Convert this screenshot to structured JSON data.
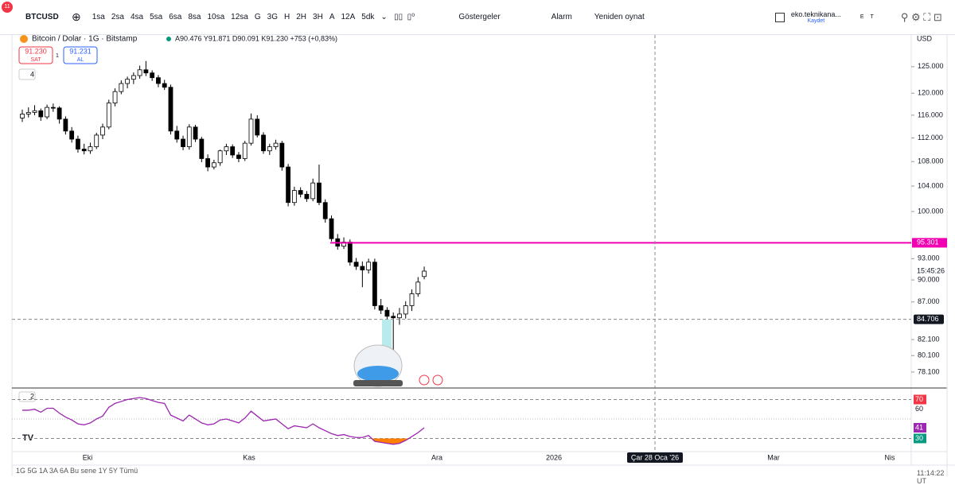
{
  "toolbar": {
    "badge": "11",
    "symbol": "BTCUSD",
    "intervals": [
      "1sa",
      "2sa",
      "4sa",
      "5sa",
      "6sa",
      "8sa",
      "10sa",
      "12sa",
      "G",
      "3G",
      "H",
      "2H",
      "3H",
      "A",
      "12A",
      "5dk"
    ],
    "indicators": "Göstergeler",
    "alarm": "Alarm",
    "replay": "Yeniden oynat",
    "account": "eko.teknikana...",
    "saved": "Kaydet",
    "e": "E",
    "t": "T"
  },
  "legend": {
    "title": "Bitcoin / Dolar · 1G · Bitstamp",
    "ohlc": "A90.476 Y91.871 D90.091 K91.230 +753 (+0,83%)",
    "sell_price": "91.230",
    "sell": "SAT",
    "spread": "1",
    "buy_price": "91.231",
    "buy": "AL",
    "collapse": "4"
  },
  "chart_data": {
    "type": "candlestick",
    "log": true,
    "currency": "USD",
    "candles": [
      [
        115500,
        117000,
        114800,
        116200
      ],
      [
        116200,
        117400,
        115600,
        116500
      ],
      [
        116500,
        117800,
        116000,
        116800
      ],
      [
        116800,
        117200,
        115000,
        115700
      ],
      [
        115700,
        117900,
        115300,
        117400
      ],
      [
        117400,
        118100,
        116600,
        117300
      ],
      [
        117300,
        117600,
        114500,
        115300
      ],
      [
        115300,
        115800,
        112600,
        113200
      ],
      [
        113200,
        113900,
        111200,
        111800
      ],
      [
        111800,
        112400,
        109500,
        110100
      ],
      [
        110100,
        111000,
        109200,
        109800
      ],
      [
        109800,
        111200,
        109300,
        110500
      ],
      [
        110500,
        112900,
        110100,
        112500
      ],
      [
        112500,
        114500,
        111800,
        113900
      ],
      [
        113900,
        118800,
        113500,
        118200
      ],
      [
        118200,
        120900,
        117600,
        120300
      ],
      [
        120300,
        122400,
        119800,
        121800
      ],
      [
        121800,
        123100,
        120900,
        122600
      ],
      [
        122600,
        123900,
        121700,
        123300
      ],
      [
        123300,
        125200,
        122700,
        124400
      ],
      [
        124400,
        126100,
        123200,
        123800
      ],
      [
        123800,
        124300,
        122300,
        122900
      ],
      [
        122900,
        123400,
        121100,
        121800
      ],
      [
        121800,
        122500,
        120600,
        121100
      ],
      [
        121100,
        121600,
        112600,
        113200
      ],
      [
        113200,
        114100,
        111200,
        111800
      ],
      [
        111800,
        112400,
        109900,
        110500
      ],
      [
        110500,
        114400,
        110000,
        113900
      ],
      [
        113900,
        114300,
        111300,
        111800
      ],
      [
        111800,
        112200,
        107900,
        108500
      ],
      [
        108500,
        109200,
        106400,
        107100
      ],
      [
        107100,
        108300,
        106700,
        107800
      ],
      [
        107800,
        110000,
        107300,
        109800
      ],
      [
        109800,
        111000,
        109100,
        110500
      ],
      [
        110500,
        110900,
        108600,
        109100
      ],
      [
        109100,
        109600,
        107900,
        108500
      ],
      [
        108500,
        111500,
        108100,
        111100
      ],
      [
        111100,
        116300,
        110700,
        115300
      ],
      [
        115300,
        116000,
        112100,
        112500
      ],
      [
        112500,
        113000,
        109300,
        109800
      ],
      [
        109800,
        111000,
        109100,
        110500
      ],
      [
        110500,
        111700,
        110000,
        111100
      ],
      [
        111100,
        111500,
        106500,
        107100
      ],
      [
        107100,
        107600,
        100800,
        101400
      ],
      [
        101400,
        103900,
        100900,
        103300
      ],
      [
        103300,
        103800,
        102200,
        102700
      ],
      [
        102700,
        103200,
        101500,
        102000
      ],
      [
        102000,
        105200,
        101600,
        104500
      ],
      [
        104500,
        107500,
        101000,
        101400
      ],
      [
        101400,
        101900,
        98300,
        98900
      ],
      [
        98900,
        99400,
        95500,
        95900
      ],
      [
        95900,
        96600,
        94300,
        94800
      ],
      [
        94800,
        96100,
        94400,
        95400
      ],
      [
        95400,
        95800,
        92000,
        92500
      ],
      [
        92500,
        93100,
        91400,
        91900
      ],
      [
        91900,
        92600,
        89000,
        91400
      ],
      [
        91400,
        93000,
        90900,
        92500
      ],
      [
        92500,
        93000,
        86000,
        86500
      ],
      [
        86500,
        87400,
        85400,
        85900
      ],
      [
        85900,
        86300,
        84600,
        85100
      ],
      [
        85100,
        85600,
        80600,
        84900
      ],
      [
        84900,
        86200,
        84000,
        85400
      ],
      [
        85400,
        87100,
        84800,
        86500
      ],
      [
        86500,
        88700,
        85800,
        88100
      ],
      [
        88100,
        90400,
        87700,
        89700
      ],
      [
        90476,
        91871,
        90091,
        91230
      ]
    ],
    "ylim": [
      76200,
      131900
    ],
    "yticks": [
      {
        "value": 125000,
        "label": "125.000"
      },
      {
        "value": 120000,
        "label": "120.000"
      },
      {
        "value": 116000,
        "label": "116.000"
      },
      {
        "value": 112000,
        "label": "112.000"
      },
      {
        "value": 108000,
        "label": "108.000"
      },
      {
        "value": 104000,
        "label": "104.000"
      },
      {
        "value": 100000,
        "label": "100.000"
      },
      {
        "value": 93000,
        "label": "93.000"
      },
      {
        "value": 90000,
        "label": "90.000"
      },
      {
        "value": 87000,
        "label": "87.000"
      },
      {
        "value": 82100,
        "label": "82.100"
      },
      {
        "value": 80100,
        "label": "80.100"
      },
      {
        "value": 78100,
        "label": "78.100"
      }
    ],
    "hline": {
      "value": 95301,
      "label": "95.301",
      "color": "#f000b0"
    },
    "crosshair": {
      "value": 84706,
      "label": "84.706",
      "date": "Çar 28 Oca '26"
    },
    "countdown": "15:45:26",
    "x_labels": [
      "Eki",
      "Kas",
      "Ara",
      "2026",
      "Mar",
      "Nis"
    ]
  },
  "rsi": {
    "collapse": "2",
    "values": [
      59,
      59,
      60,
      57,
      61,
      61,
      56,
      52,
      49,
      45,
      44,
      46,
      50,
      53,
      62,
      66,
      68,
      70,
      71,
      72,
      71,
      69,
      67,
      66,
      54,
      51,
      48,
      54,
      50,
      46,
      44,
      45,
      49,
      50,
      48,
      46,
      51,
      58,
      53,
      48,
      49,
      50,
      45,
      40,
      43,
      42,
      41,
      45,
      41,
      38,
      35,
      33,
      34,
      32,
      31,
      31,
      33,
      27,
      26,
      25,
      24,
      25,
      28,
      32,
      36,
      41
    ],
    "ylim": [
      16.5,
      80.2
    ],
    "upper": 70,
    "lower": 30,
    "yticks": [
      70,
      60,
      30
    ],
    "color": "#9c27b0"
  },
  "bottom": {
    "ranges": "1G  5G  1A  3A  6A  Bu sene  1Y  5Y  Tümü",
    "clock": "11:14:22 UT"
  }
}
